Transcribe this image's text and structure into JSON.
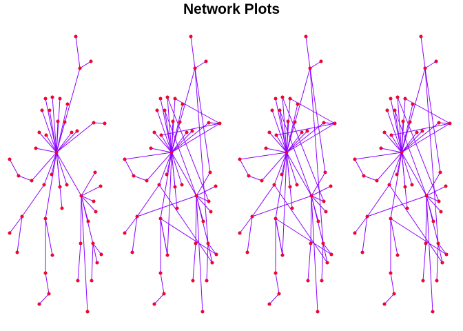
{
  "title": "Network Plots",
  "colors": {
    "edge": "#8B00FF",
    "node": "#FF0033",
    "node_stroke": "#c8001f"
  },
  "chart_data": {
    "type": "network",
    "panels": 4,
    "nodes": [
      [
        "n1",
        110,
        53
      ],
      [
        "n2",
        116,
        99
      ],
      [
        "n3",
        132,
        89
      ],
      [
        "hub",
        82,
        221
      ],
      [
        "a1",
        66,
        143
      ],
      [
        "a2",
        76,
        141
      ],
      [
        "a3",
        87,
        143
      ],
      [
        "a4",
        98,
        151
      ],
      [
        "a5",
        61,
        160
      ],
      [
        "a6",
        72,
        160
      ],
      [
        "a7",
        84,
        176
      ],
      [
        "a8",
        94,
        177
      ],
      [
        "a9",
        57,
        192
      ],
      [
        "a10",
        67,
        196
      ],
      [
        "a11",
        104,
        192
      ],
      [
        "a12",
        112,
        190
      ],
      [
        "a13",
        52,
        215
      ],
      [
        "c1",
        136,
        178
      ],
      [
        "c2",
        152,
        179
      ],
      [
        "l1",
        14,
        231
      ],
      [
        "l2",
        27,
        255
      ],
      [
        "l3",
        46,
        262
      ],
      [
        "l4",
        64,
        268
      ],
      [
        "l5",
        75,
        253
      ],
      [
        "l6",
        87,
        271
      ],
      [
        "l7",
        97,
        268
      ],
      [
        "h2",
        118,
        284
      ],
      [
        "r1",
        138,
        250
      ],
      [
        "r2",
        146,
        270
      ],
      [
        "r3",
        136,
        292
      ],
      [
        "r4",
        139,
        307
      ],
      [
        "r5",
        128,
        321
      ],
      [
        "d1",
        32,
        314
      ],
      [
        "d2",
        66,
        317
      ],
      [
        "d3",
        90,
        302
      ],
      [
        "e1",
        14,
        338
      ],
      [
        "e2",
        25,
        366
      ],
      [
        "e3",
        76,
        370
      ],
      [
        "f1",
        117,
        353
      ],
      [
        "f2",
        135,
        353
      ],
      [
        "f3",
        147,
        369
      ],
      [
        "f4",
        141,
        381
      ],
      [
        "g1",
        66,
        396
      ],
      [
        "g2",
        71,
        426
      ],
      [
        "g3",
        57,
        441
      ],
      [
        "k1",
        113,
        407
      ],
      [
        "k2",
        133,
        407
      ],
      [
        "k3",
        127,
        452
      ]
    ],
    "edges": [
      [
        "n1",
        "n2"
      ],
      [
        "n2",
        "n3"
      ],
      [
        "n2",
        "hub"
      ],
      [
        "hub",
        "a1"
      ],
      [
        "hub",
        "a2"
      ],
      [
        "hub",
        "a3"
      ],
      [
        "hub",
        "a4"
      ],
      [
        "hub",
        "a5"
      ],
      [
        "hub",
        "a6"
      ],
      [
        "hub",
        "a7"
      ],
      [
        "hub",
        "a8"
      ],
      [
        "hub",
        "a9"
      ],
      [
        "hub",
        "a10"
      ],
      [
        "hub",
        "a11"
      ],
      [
        "hub",
        "a12"
      ],
      [
        "hub",
        "a13"
      ],
      [
        "hub",
        "c1"
      ],
      [
        "c1",
        "c2"
      ],
      [
        "hub",
        "l3"
      ],
      [
        "l3",
        "l2"
      ],
      [
        "l2",
        "l1"
      ],
      [
        "hub",
        "l4"
      ],
      [
        "hub",
        "l5"
      ],
      [
        "hub",
        "l6"
      ],
      [
        "hub",
        "l7"
      ],
      [
        "hub",
        "h2"
      ],
      [
        "h2",
        "r1"
      ],
      [
        "h2",
        "r2"
      ],
      [
        "h2",
        "r3"
      ],
      [
        "h2",
        "r4"
      ],
      [
        "h2",
        "r5"
      ],
      [
        "hub",
        "d2"
      ],
      [
        "hub",
        "d3"
      ],
      [
        "l4",
        "d1"
      ],
      [
        "d1",
        "e1"
      ],
      [
        "d1",
        "e2"
      ],
      [
        "d2",
        "e3"
      ],
      [
        "h2",
        "f1"
      ],
      [
        "h2",
        "f2"
      ],
      [
        "f2",
        "f3"
      ],
      [
        "f2",
        "f4"
      ],
      [
        "d2",
        "g1"
      ],
      [
        "g1",
        "g2"
      ],
      [
        "g2",
        "g3"
      ],
      [
        "f1",
        "k1"
      ],
      [
        "f2",
        "k2"
      ],
      [
        "h2",
        "k3"
      ]
    ],
    "extra_edges_panel_2_3": [
      [
        "a3",
        "c2"
      ],
      [
        "a10",
        "c2"
      ],
      [
        "c1",
        "c2"
      ],
      [
        "hub",
        "c2"
      ],
      [
        "n2",
        "r1"
      ],
      [
        "n2",
        "f2"
      ],
      [
        "a6",
        "h2"
      ],
      [
        "a2",
        "r3"
      ],
      [
        "d1",
        "h2"
      ],
      [
        "a7",
        "e3"
      ],
      [
        "d2",
        "f3"
      ],
      [
        "l4",
        "f4"
      ],
      [
        "e3",
        "d2"
      ],
      [
        "hub",
        "l1"
      ]
    ],
    "extra_edges_panel_4": [
      [
        "a3",
        "c2"
      ],
      [
        "a10",
        "c2"
      ],
      [
        "hub",
        "c2"
      ],
      [
        "n2",
        "r1"
      ],
      [
        "n2",
        "f2"
      ],
      [
        "a6",
        "h2"
      ],
      [
        "a2",
        "r3"
      ],
      [
        "d1",
        "h2"
      ],
      [
        "d2",
        "f3"
      ],
      [
        "l4",
        "f4"
      ],
      [
        "hub",
        "l1"
      ]
    ]
  }
}
